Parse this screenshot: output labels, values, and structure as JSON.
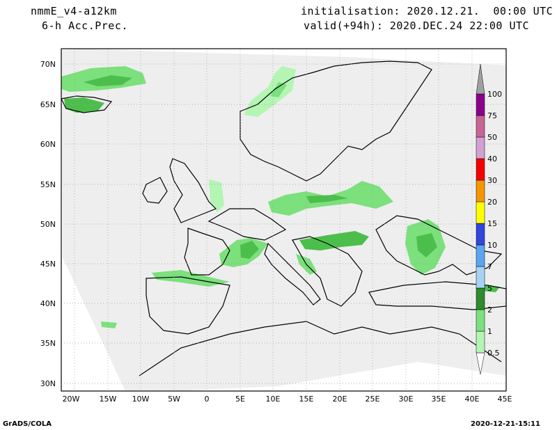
{
  "header": {
    "model": "nmmE_v4-a12km",
    "field": "6-h Acc.Prec.",
    "init": "initialisation: 2020.12.21.  00:00 UTC",
    "valid": "valid(+94h): 2020.DEC.24 22:00 UTC"
  },
  "axes": {
    "lat_labels": [
      "70N",
      "65N",
      "60N",
      "55N",
      "50N",
      "45N",
      "40N",
      "35N",
      "30N"
    ],
    "lon_labels": [
      "20W",
      "15W",
      "10W",
      "5W",
      "0",
      "5E",
      "10E",
      "15E",
      "20E",
      "25E",
      "30E",
      "35E",
      "40E",
      "45E"
    ]
  },
  "colorbar": {
    "levels": [
      "0.5",
      "1",
      "2",
      "5",
      "7",
      "10",
      "15",
      "20",
      "30",
      "40",
      "50",
      "75",
      "100"
    ],
    "colors": [
      "#b4f5b4",
      "#7ce07c",
      "#4cbe4c",
      "#2e8b2e",
      "#a6d2f5",
      "#5aa5f0",
      "#3246dc",
      "#ffff00",
      "#f59600",
      "#f50000",
      "#d2a0d2",
      "#c86496",
      "#8c008c",
      "#a0a0a0"
    ]
  },
  "footer": {
    "left": "GrADS/COLA",
    "right": "2020-12-21-15:11"
  }
}
